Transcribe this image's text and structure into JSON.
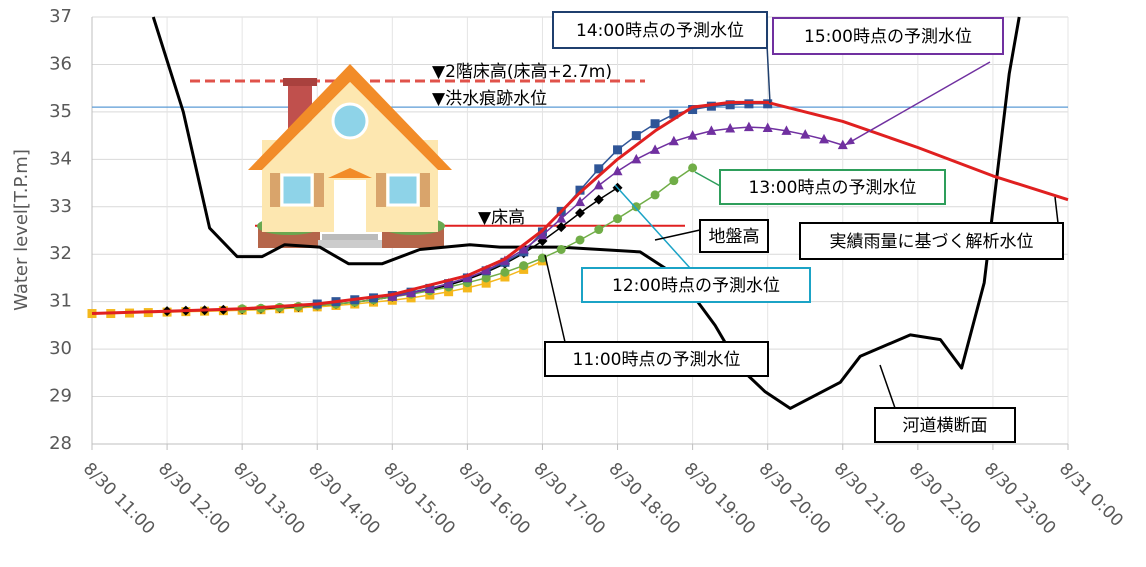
{
  "chart_data": {
    "type": "line",
    "y_label": "Water level[T.P.m]",
    "ylim": [
      28,
      37
    ],
    "yticks": [
      28,
      29,
      30,
      31,
      32,
      33,
      34,
      35,
      36,
      37
    ],
    "xlim": [
      "8/30 11:00",
      "8/31 0:00"
    ],
    "xticks": [
      "8/30 11:00",
      "8/30 12:00",
      "8/30 13:00",
      "8/30 14:00",
      "8/30 15:00",
      "8/30 16:00",
      "8/30 17:00",
      "8/30 18:00",
      "8/30 19:00",
      "8/30 20:00",
      "8/30 21:00",
      "8/30 22:00",
      "8/30 23:00",
      "8/31 0:00"
    ],
    "grid": true,
    "reference_lines": [
      {
        "label": "▼2階床高(床高+2.7m)",
        "value": 35.65,
        "color": "#e0524a",
        "dash": true
      },
      {
        "label": "▼洪水痕跡水位",
        "value": 35.1,
        "color": "#5b9bd5",
        "dash": false
      },
      {
        "label": "▼床高",
        "value": 32.6,
        "color": "#e02020",
        "dash": false
      }
    ],
    "ground_label": "地盤高",
    "series": [
      {
        "name": "実績雨量に基づく解析水位",
        "color": "#e02020",
        "marker": "none",
        "label_color": "#000000",
        "x": [
          "8/30 11:00",
          "8/30 12:00",
          "8/30 13:00",
          "8/30 14:00",
          "8/30 15:00",
          "8/30 16:00",
          "8/30 16:30",
          "8/30 17:00",
          "8/30 17:30",
          "8/30 18:00",
          "8/30 18:30",
          "8/30 19:00",
          "8/30 19:30",
          "8/30 20:00",
          "8/30 21:00",
          "8/30 22:00",
          "8/30 23:00",
          "8/31 0:00"
        ],
        "values": [
          30.75,
          30.8,
          30.85,
          30.95,
          31.15,
          31.55,
          31.9,
          32.5,
          33.3,
          34.0,
          34.6,
          35.1,
          35.2,
          35.2,
          34.8,
          34.25,
          33.65,
          33.15
        ]
      },
      {
        "name": "11:00時点の予測水位",
        "color": "#f4b81c",
        "marker": "square",
        "label_color": "#000000",
        "x": [
          "8/30 11:00",
          "8/30 11:15",
          "8/30 11:30",
          "8/30 11:45",
          "8/30 12:00",
          "8/30 12:15",
          "8/30 12:30",
          "8/30 12:45",
          "8/30 13:00",
          "8/30 13:15",
          "8/30 13:30",
          "8/30 13:45",
          "8/30 14:00",
          "8/30 14:15",
          "8/30 14:30",
          "8/30 14:45",
          "8/30 15:00",
          "8/30 15:15",
          "8/30 15:30",
          "8/30 15:45",
          "8/30 16:00",
          "8/30 16:15",
          "8/30 16:30",
          "8/30 16:45",
          "8/30 17:00"
        ],
        "values": [
          30.75,
          30.75,
          30.76,
          30.77,
          30.78,
          30.79,
          30.8,
          30.81,
          30.82,
          30.83,
          30.85,
          30.87,
          30.89,
          30.92,
          30.95,
          30.99,
          31.03,
          31.08,
          31.14,
          31.21,
          31.29,
          31.39,
          31.52,
          31.68,
          31.86
        ]
      },
      {
        "name": "12:00時点の予測水位",
        "color": "#000000",
        "marker": "diamond",
        "label_color": "#1ba3c6",
        "x": [
          "8/30 12:00",
          "8/30 12:15",
          "8/30 12:30",
          "8/30 12:45",
          "8/30 13:00",
          "8/30 13:15",
          "8/30 13:30",
          "8/30 13:45",
          "8/30 14:00",
          "8/30 14:15",
          "8/30 14:30",
          "8/30 14:45",
          "8/30 15:00",
          "8/30 15:15",
          "8/30 15:30",
          "8/30 15:45",
          "8/30 16:00",
          "8/30 16:15",
          "8/30 16:30",
          "8/30 16:45",
          "8/30 17:00",
          "8/30 17:15",
          "8/30 17:30",
          "8/30 17:45",
          "8/30 18:00"
        ],
        "values": [
          30.8,
          30.81,
          30.82,
          30.83,
          30.84,
          30.85,
          30.87,
          30.89,
          30.92,
          30.95,
          30.99,
          31.04,
          31.1,
          31.17,
          31.25,
          31.35,
          31.47,
          31.62,
          31.8,
          32.02,
          32.28,
          32.57,
          32.87,
          33.15,
          33.4
        ]
      },
      {
        "name": "13:00時点の予測水位",
        "color": "#70ad47",
        "marker": "circle",
        "label_color": "#2e9e5b",
        "x": [
          "8/30 13:00",
          "8/30 13:15",
          "8/30 13:30",
          "8/30 13:45",
          "8/30 14:00",
          "8/30 14:15",
          "8/30 14:30",
          "8/30 14:45",
          "8/30 15:00",
          "8/30 15:15",
          "8/30 15:30",
          "8/30 15:45",
          "8/30 16:00",
          "8/30 16:15",
          "8/30 16:30",
          "8/30 16:45",
          "8/30 17:00",
          "8/30 17:15",
          "8/30 17:30",
          "8/30 17:45",
          "8/30 18:00",
          "8/30 18:15",
          "8/30 18:30",
          "8/30 18:45",
          "8/30 19:00"
        ],
        "values": [
          30.85,
          30.86,
          30.88,
          30.9,
          30.92,
          30.95,
          30.99,
          31.04,
          31.1,
          31.16,
          31.23,
          31.31,
          31.4,
          31.5,
          31.62,
          31.76,
          31.92,
          32.1,
          32.3,
          32.52,
          32.75,
          33.0,
          33.25,
          33.55,
          33.82
        ]
      },
      {
        "name": "14:00時点の予測水位",
        "color": "#2f5597",
        "marker": "square",
        "label_color": "#1f3f6e",
        "x": [
          "8/30 14:00",
          "8/30 14:15",
          "8/30 14:30",
          "8/30 14:45",
          "8/30 15:00",
          "8/30 15:15",
          "8/30 15:30",
          "8/30 15:45",
          "8/30 16:00",
          "8/30 16:15",
          "8/30 16:30",
          "8/30 16:45",
          "8/30 17:00",
          "8/30 17:15",
          "8/30 17:30",
          "8/30 17:45",
          "8/30 18:00",
          "8/30 18:15",
          "8/30 18:30",
          "8/30 18:45",
          "8/30 19:00",
          "8/30 19:15",
          "8/30 19:30",
          "8/30 19:45",
          "8/30 20:00"
        ],
        "values": [
          30.95,
          31.0,
          31.04,
          31.08,
          31.13,
          31.2,
          31.28,
          31.38,
          31.5,
          31.65,
          31.83,
          32.05,
          32.47,
          32.9,
          33.35,
          33.8,
          34.2,
          34.5,
          34.75,
          34.95,
          35.05,
          35.12,
          35.15,
          35.17,
          35.17
        ]
      },
      {
        "name": "15:00時点の予測水位",
        "color": "#7030a0",
        "marker": "triangle",
        "label_color": "#7030a0",
        "x": [
          "8/30 15:00",
          "8/30 15:15",
          "8/30 15:30",
          "8/30 15:45",
          "8/30 16:00",
          "8/30 16:15",
          "8/30 16:30",
          "8/30 16:45",
          "8/30 17:00",
          "8/30 17:15",
          "8/30 17:30",
          "8/30 17:45",
          "8/30 18:00",
          "8/30 18:15",
          "8/30 18:30",
          "8/30 18:45",
          "8/30 19:00",
          "8/30 19:15",
          "8/30 19:30",
          "8/30 19:45",
          "8/30 20:00",
          "8/30 20:15",
          "8/30 20:30",
          "8/30 20:45",
          "8/30 21:00"
        ],
        "values": [
          31.1,
          31.18,
          31.27,
          31.38,
          31.5,
          31.66,
          31.86,
          32.1,
          32.4,
          32.75,
          33.1,
          33.45,
          33.75,
          34.0,
          34.2,
          34.38,
          34.5,
          34.6,
          34.65,
          34.68,
          34.66,
          34.6,
          34.52,
          34.42,
          34.3
        ]
      },
      {
        "name": "河道横断面",
        "color": "#000000",
        "marker": "none",
        "label_color": "#000000",
        "x": [
          "8/30 11:49",
          "8/30 12:13",
          "8/30 12:34",
          "8/30 12:56",
          "8/30 13:16",
          "8/30 13:34",
          "8/30 14:02",
          "8/30 14:25",
          "8/30 14:52",
          "8/30 15:22",
          "8/30 16:02",
          "8/30 16:26",
          "8/30 17:14",
          "8/30 17:46",
          "8/30 18:18",
          "8/30 18:50",
          "8/30 19:18",
          "8/30 19:38",
          "8/30 19:58",
          "8/30 20:18",
          "8/30 20:58",
          "8/30 21:14",
          "8/30 21:54",
          "8/30 22:18",
          "8/30 22:35",
          "8/30 22:53",
          "8/30 23:13",
          "8/30 23:21"
        ],
        "values": [
          37,
          35.0,
          32.55,
          31.95,
          31.95,
          32.2,
          32.15,
          31.8,
          31.8,
          32.1,
          32.2,
          32.15,
          32.15,
          32.1,
          32.05,
          31.5,
          30.5,
          29.6,
          29.1,
          28.75,
          29.3,
          29.85,
          30.3,
          30.2,
          29.6,
          31.4,
          35.8,
          37
        ]
      }
    ]
  }
}
